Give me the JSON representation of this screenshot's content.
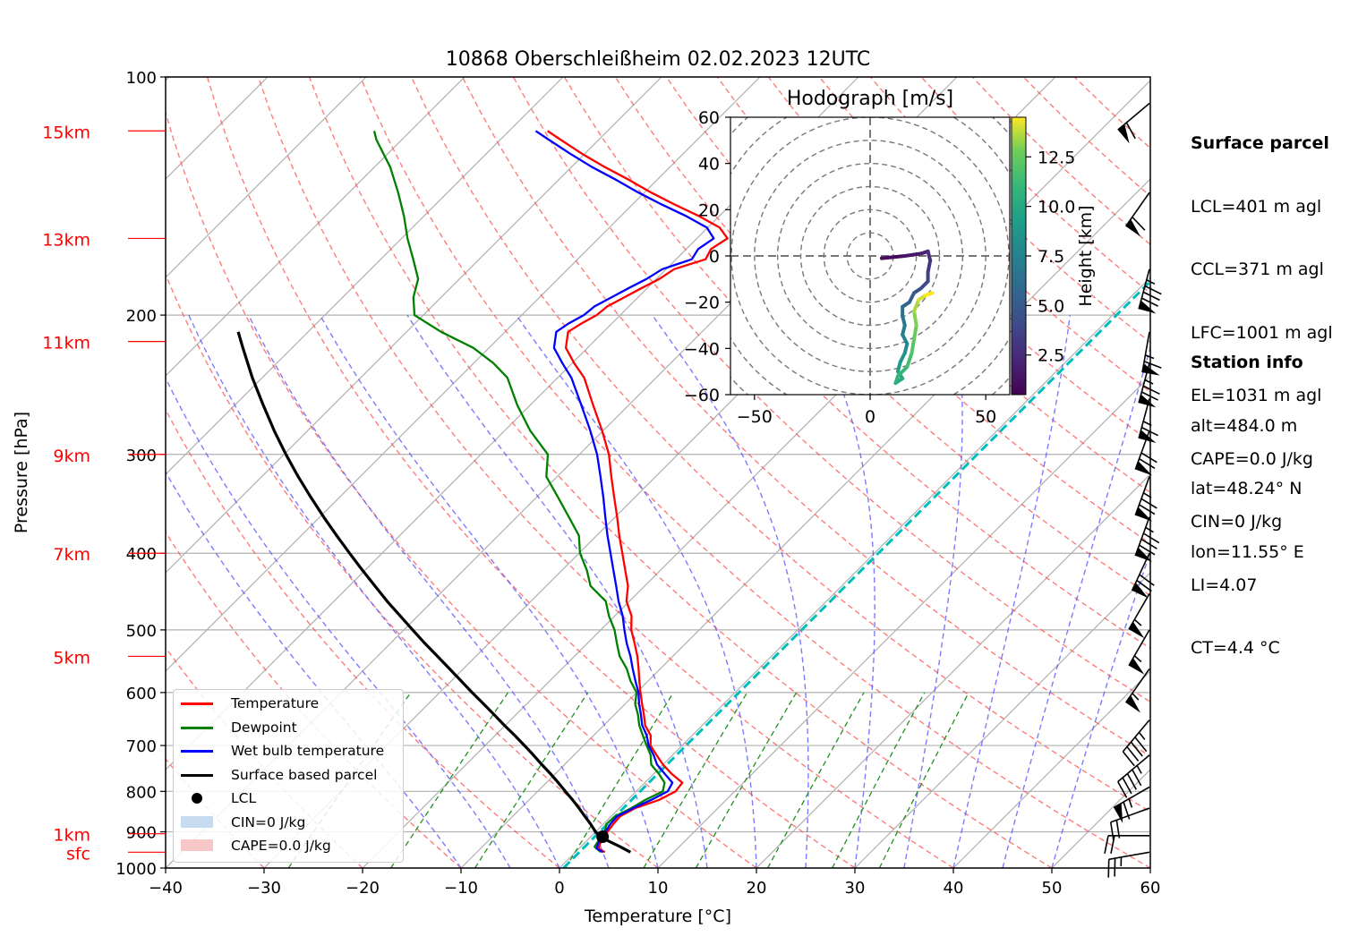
{
  "chart_data": {
    "type": "line",
    "title": "10868 Oberschleißheim 02.02.2023 12UTC",
    "xlabel": "Temperature [°C]",
    "ylabel": "Pressure [hPa]",
    "xlim": [
      -40,
      60
    ],
    "ylim": [
      1000,
      100
    ],
    "x_ticks": [
      "−40",
      "−30",
      "−20",
      "−10",
      "0",
      "10",
      "20",
      "30",
      "40",
      "50",
      "60"
    ],
    "y_ticks": [
      {
        "p": 1000,
        "label": "1000"
      },
      {
        "p": 900,
        "label": "900"
      },
      {
        "p": 800,
        "label": "800"
      },
      {
        "p": 700,
        "label": "700"
      },
      {
        "p": 600,
        "label": "600"
      },
      {
        "p": 500,
        "label": "500"
      },
      {
        "p": 400,
        "label": "400"
      },
      {
        "p": 300,
        "label": "300"
      },
      {
        "p": 200,
        "label": "200"
      },
      {
        "p": 100,
        "label": "100"
      }
    ],
    "y_scale": "log",
    "skew": "skew-T",
    "grid": true,
    "height_labels": [
      {
        "label": "sfc",
        "p": 955
      },
      {
        "label": "1km",
        "p": 905
      },
      {
        "label": "5km",
        "p": 540
      },
      {
        "label": "7km",
        "p": 400
      },
      {
        "label": "9km",
        "p": 300
      },
      {
        "label": "11km",
        "p": 216
      },
      {
        "label": "13km",
        "p": 160
      },
      {
        "label": "15km",
        "p": 117
      }
    ],
    "series": [
      {
        "name": "Temperature",
        "color": "#ff0000",
        "points": [
          [
            955,
            3.0
          ],
          [
            945,
            2.0
          ],
          [
            930,
            1.6
          ],
          [
            915,
            1.4
          ],
          [
            900,
            1.2
          ],
          [
            880,
            1.0
          ],
          [
            860,
            0.9
          ],
          [
            840,
            1.6
          ],
          [
            820,
            3.2
          ],
          [
            800,
            4.0
          ],
          [
            780,
            3.8
          ],
          [
            760,
            1.8
          ],
          [
            740,
            0.0
          ],
          [
            720,
            -1.6
          ],
          [
            700,
            -3.2
          ],
          [
            680,
            -4.2
          ],
          [
            660,
            -5.8
          ],
          [
            640,
            -7.0
          ],
          [
            620,
            -8.3
          ],
          [
            600,
            -9.6
          ],
          [
            580,
            -10.9
          ],
          [
            560,
            -12.2
          ],
          [
            540,
            -13.6
          ],
          [
            520,
            -15.2
          ],
          [
            500,
            -16.9
          ],
          [
            480,
            -18.3
          ],
          [
            460,
            -20.3
          ],
          [
            440,
            -21.7
          ],
          [
            420,
            -23.6
          ],
          [
            400,
            -25.6
          ],
          [
            380,
            -27.7
          ],
          [
            360,
            -29.8
          ],
          [
            340,
            -32.1
          ],
          [
            320,
            -34.5
          ],
          [
            300,
            -37.0
          ],
          [
            280,
            -40.1
          ],
          [
            260,
            -43.6
          ],
          [
            240,
            -47.3
          ],
          [
            230,
            -49.8
          ],
          [
            220,
            -52.2
          ],
          [
            210,
            -53.6
          ],
          [
            205,
            -53.1
          ],
          [
            200,
            -52.4
          ],
          [
            195,
            -52.2
          ],
          [
            190,
            -51.4
          ],
          [
            185,
            -50.6
          ],
          [
            180,
            -49.7
          ],
          [
            175,
            -49.2
          ],
          [
            170,
            -47.0
          ],
          [
            165,
            -47.5
          ],
          [
            160,
            -46.9
          ],
          [
            155,
            -48.8
          ],
          [
            150,
            -52.0
          ],
          [
            145,
            -55.7
          ],
          [
            140,
            -59.3
          ],
          [
            135,
            -62.8
          ],
          [
            130,
            -66.6
          ],
          [
            125,
            -70.3
          ],
          [
            120,
            -73.9
          ],
          [
            117,
            -76.1
          ]
        ]
      },
      {
        "name": "Dewpoint",
        "color": "#008000",
        "points": [
          [
            955,
            2.6
          ],
          [
            940,
            1.4
          ],
          [
            925,
            1.2
          ],
          [
            900,
            0.9
          ],
          [
            880,
            0.3
          ],
          [
            860,
            0.4
          ],
          [
            840,
            1.2
          ],
          [
            820,
            1.8
          ],
          [
            800,
            2.7
          ],
          [
            780,
            2.0
          ],
          [
            760,
            0.5
          ],
          [
            740,
            -1.2
          ],
          [
            720,
            -2.2
          ],
          [
            700,
            -3.6
          ],
          [
            680,
            -5.0
          ],
          [
            660,
            -6.4
          ],
          [
            640,
            -7.6
          ],
          [
            620,
            -9.0
          ],
          [
            600,
            -10.0
          ],
          [
            580,
            -11.8
          ],
          [
            560,
            -13.4
          ],
          [
            540,
            -15.4
          ],
          [
            520,
            -17.0
          ],
          [
            500,
            -18.6
          ],
          [
            480,
            -20.6
          ],
          [
            460,
            -22.4
          ],
          [
            440,
            -25.5
          ],
          [
            420,
            -27.5
          ],
          [
            400,
            -29.9
          ],
          [
            380,
            -31.8
          ],
          [
            360,
            -34.7
          ],
          [
            340,
            -37.8
          ],
          [
            320,
            -41.1
          ],
          [
            300,
            -43.2
          ],
          [
            280,
            -47.4
          ],
          [
            260,
            -51.3
          ],
          [
            240,
            -55.1
          ],
          [
            230,
            -58.0
          ],
          [
            220,
            -61.6
          ],
          [
            210,
            -66.5
          ],
          [
            200,
            -70.9
          ],
          [
            190,
            -72.8
          ],
          [
            180,
            -74.2
          ],
          [
            170,
            -76.7
          ],
          [
            160,
            -79.4
          ],
          [
            150,
            -82.0
          ],
          [
            140,
            -85.0
          ],
          [
            130,
            -88.4
          ],
          [
            120,
            -92.6
          ],
          [
            117,
            -93.7
          ]
        ]
      },
      {
        "name": "Wet bulb temperature",
        "color": "#0000ff",
        "points": [
          [
            955,
            2.8
          ],
          [
            945,
            1.8
          ],
          [
            930,
            1.4
          ],
          [
            915,
            1.3
          ],
          [
            900,
            1.0
          ],
          [
            880,
            0.7
          ],
          [
            860,
            0.6
          ],
          [
            840,
            1.4
          ],
          [
            820,
            2.4
          ],
          [
            800,
            3.2
          ],
          [
            780,
            2.8
          ],
          [
            760,
            1.1
          ],
          [
            740,
            -0.6
          ],
          [
            720,
            -1.9
          ],
          [
            700,
            -3.4
          ],
          [
            680,
            -4.6
          ],
          [
            660,
            -6.1
          ],
          [
            640,
            -7.3
          ],
          [
            620,
            -8.6
          ],
          [
            600,
            -9.8
          ],
          [
            580,
            -11.3
          ],
          [
            560,
            -12.8
          ],
          [
            540,
            -14.3
          ],
          [
            520,
            -16.0
          ],
          [
            500,
            -17.6
          ],
          [
            480,
            -19.2
          ],
          [
            460,
            -21.1
          ],
          [
            440,
            -22.9
          ],
          [
            420,
            -24.8
          ],
          [
            400,
            -26.8
          ],
          [
            380,
            -28.9
          ],
          [
            360,
            -31.0
          ],
          [
            340,
            -33.2
          ],
          [
            320,
            -35.6
          ],
          [
            300,
            -38.2
          ],
          [
            280,
            -41.3
          ],
          [
            260,
            -44.8
          ],
          [
            240,
            -48.6
          ],
          [
            230,
            -51.0
          ],
          [
            220,
            -53.4
          ],
          [
            210,
            -54.8
          ],
          [
            205,
            -54.4
          ],
          [
            200,
            -53.7
          ],
          [
            195,
            -53.5
          ],
          [
            190,
            -52.7
          ],
          [
            185,
            -51.9
          ],
          [
            180,
            -51.0
          ],
          [
            175,
            -50.4
          ],
          [
            170,
            -48.4
          ],
          [
            165,
            -48.8
          ],
          [
            160,
            -48.3
          ],
          [
            155,
            -50.1
          ],
          [
            150,
            -53.3
          ],
          [
            145,
            -57.0
          ],
          [
            140,
            -60.6
          ],
          [
            135,
            -64.1
          ],
          [
            130,
            -67.9
          ],
          [
            125,
            -71.5
          ],
          [
            120,
            -75.1
          ],
          [
            117,
            -77.3
          ]
        ]
      },
      {
        "name": "Surface based parcel",
        "color": "#000000",
        "points": [
          [
            955,
            5.6
          ],
          [
            940,
            4.0
          ],
          [
            925,
            2.3
          ],
          [
            915,
            1.2
          ],
          [
            900,
            0.0
          ],
          [
            880,
            -1.3
          ],
          [
            860,
            -2.7
          ],
          [
            840,
            -4.1
          ],
          [
            820,
            -5.6
          ],
          [
            800,
            -7.2
          ],
          [
            780,
            -8.8
          ],
          [
            760,
            -10.5
          ],
          [
            740,
            -12.3
          ],
          [
            720,
            -14.1
          ],
          [
            700,
            -16.0
          ],
          [
            680,
            -18.0
          ],
          [
            660,
            -20.1
          ],
          [
            640,
            -22.2
          ],
          [
            620,
            -24.4
          ],
          [
            600,
            -26.7
          ],
          [
            580,
            -29.0
          ],
          [
            560,
            -31.4
          ],
          [
            540,
            -33.9
          ],
          [
            520,
            -36.5
          ],
          [
            500,
            -39.1
          ],
          [
            480,
            -41.8
          ],
          [
            460,
            -44.6
          ],
          [
            440,
            -47.4
          ],
          [
            420,
            -50.3
          ],
          [
            400,
            -53.3
          ],
          [
            380,
            -56.4
          ],
          [
            360,
            -59.6
          ],
          [
            340,
            -62.9
          ],
          [
            320,
            -66.3
          ],
          [
            300,
            -69.8
          ],
          [
            280,
            -73.4
          ],
          [
            260,
            -77.1
          ],
          [
            240,
            -81.0
          ],
          [
            220,
            -85.0
          ],
          [
            210,
            -87.1
          ]
        ]
      }
    ],
    "lcl": {
      "name": "LCL",
      "p": 913,
      "t": 1.2
    },
    "ccl_line": {
      "color": "#00bfbf",
      "t_surface": 0.4
    },
    "legend": {
      "placement": "lower-left",
      "entries": [
        {
          "label": "Temperature",
          "kind": "line",
          "color": "#ff0000"
        },
        {
          "label": "Dewpoint",
          "kind": "line",
          "color": "#008000"
        },
        {
          "label": "Wet bulb temperature",
          "kind": "line",
          "color": "#0000ff"
        },
        {
          "label": "Surface based parcel",
          "kind": "line",
          "color": "#000000"
        },
        {
          "label": "LCL",
          "kind": "dot",
          "color": "#000000"
        },
        {
          "label": "CIN=0 J/kg",
          "kind": "patch",
          "color": "#c6dbef"
        },
        {
          "label": "CAPE=0.0 J/kg",
          "kind": "patch",
          "color": "#f7c6c6"
        }
      ]
    },
    "wind_barbs": [
      {
        "p": 955,
        "speed_kt": 25,
        "dir_deg": 80
      },
      {
        "p": 910,
        "speed_kt": 20,
        "dir_deg": 90
      },
      {
        "p": 840,
        "speed_kt": 20,
        "dir_deg": 70
      },
      {
        "p": 790,
        "speed_kt": 65,
        "dir_deg": 60
      },
      {
        "p": 720,
        "speed_kt": 45,
        "dir_deg": 50
      },
      {
        "p": 650,
        "speed_kt": 45,
        "dir_deg": 40
      },
      {
        "p": 560,
        "speed_kt": 55,
        "dir_deg": 35
      },
      {
        "p": 500,
        "speed_kt": 55,
        "dir_deg": 30
      },
      {
        "p": 450,
        "speed_kt": 55,
        "dir_deg": 30
      },
      {
        "p": 400,
        "speed_kt": 70,
        "dir_deg": 25
      },
      {
        "p": 360,
        "speed_kt": 85,
        "dir_deg": 20
      },
      {
        "p": 320,
        "speed_kt": 75,
        "dir_deg": 20
      },
      {
        "p": 280,
        "speed_kt": 70,
        "dir_deg": 20
      },
      {
        "p": 255,
        "speed_kt": 65,
        "dir_deg": 15
      },
      {
        "p": 230,
        "speed_kt": 75,
        "dir_deg": 15
      },
      {
        "p": 210,
        "speed_kt": 65,
        "dir_deg": 10
      },
      {
        "p": 175,
        "speed_kt": 85,
        "dir_deg": 15
      },
      {
        "p": 140,
        "speed_kt": 60,
        "dir_deg": 35
      },
      {
        "p": 108,
        "speed_kt": 60,
        "dir_deg": 50
      }
    ]
  },
  "hodograph": {
    "title": "Hodograph [m/s]",
    "xlim": [
      -60,
      60
    ],
    "ylim": [
      -60,
      60
    ],
    "x_ticks": [
      "−50",
      "0",
      "50"
    ],
    "y_ticks": [
      "60",
      "40",
      "20",
      "0",
      "−20",
      "−40",
      "−60"
    ],
    "colorbar_label": "Height [km]",
    "colorbar_ticks": [
      "2.5",
      "5.0",
      "7.5",
      "10.0",
      "12.5"
    ],
    "height_range_km": [
      0.5,
      14.5
    ],
    "points": [
      [
        5,
        -1,
        0.5
      ],
      [
        15,
        0,
        1.0
      ],
      [
        22,
        1,
        1.5
      ],
      [
        25,
        2,
        2.0
      ],
      [
        26,
        -2,
        2.5
      ],
      [
        25,
        -7,
        3.0
      ],
      [
        25,
        -11,
        3.5
      ],
      [
        22,
        -14,
        4.0
      ],
      [
        19,
        -16,
        4.5
      ],
      [
        17,
        -20,
        5.0
      ],
      [
        14,
        -22,
        5.5
      ],
      [
        14,
        -26,
        6.0
      ],
      [
        15,
        -30,
        6.5
      ],
      [
        14,
        -34,
        7.0
      ],
      [
        16,
        -38,
        7.5
      ],
      [
        15,
        -42,
        8.0
      ],
      [
        13,
        -46,
        8.5
      ],
      [
        12,
        -50,
        9.0
      ],
      [
        14,
        -53,
        9.5
      ],
      [
        11,
        -55,
        10.0
      ],
      [
        12,
        -52,
        10.5
      ],
      [
        16,
        -48,
        11.0
      ],
      [
        18,
        -42,
        11.5
      ],
      [
        19,
        -36,
        12.0
      ],
      [
        20,
        -30,
        12.5
      ],
      [
        19,
        -24,
        13.0
      ],
      [
        21,
        -19,
        13.5
      ],
      [
        24,
        -17,
        14.0
      ],
      [
        27,
        -16,
        14.5
      ]
    ]
  },
  "surface_parcel": {
    "heading": "Surface parcel",
    "lines": [
      "LCL=401 m agl",
      "CCL=371 m agl",
      "LFC=1001 m agl",
      "EL=1031 m agl",
      "CAPE=0.0 J/kg",
      "CIN=0 J/kg",
      "LI=4.07",
      "CT=4.4 °C"
    ]
  },
  "station_info": {
    "heading": "Station info",
    "lines": [
      "alt=484.0 m",
      "lat=48.24° N",
      "lon=11.55° E"
    ]
  }
}
